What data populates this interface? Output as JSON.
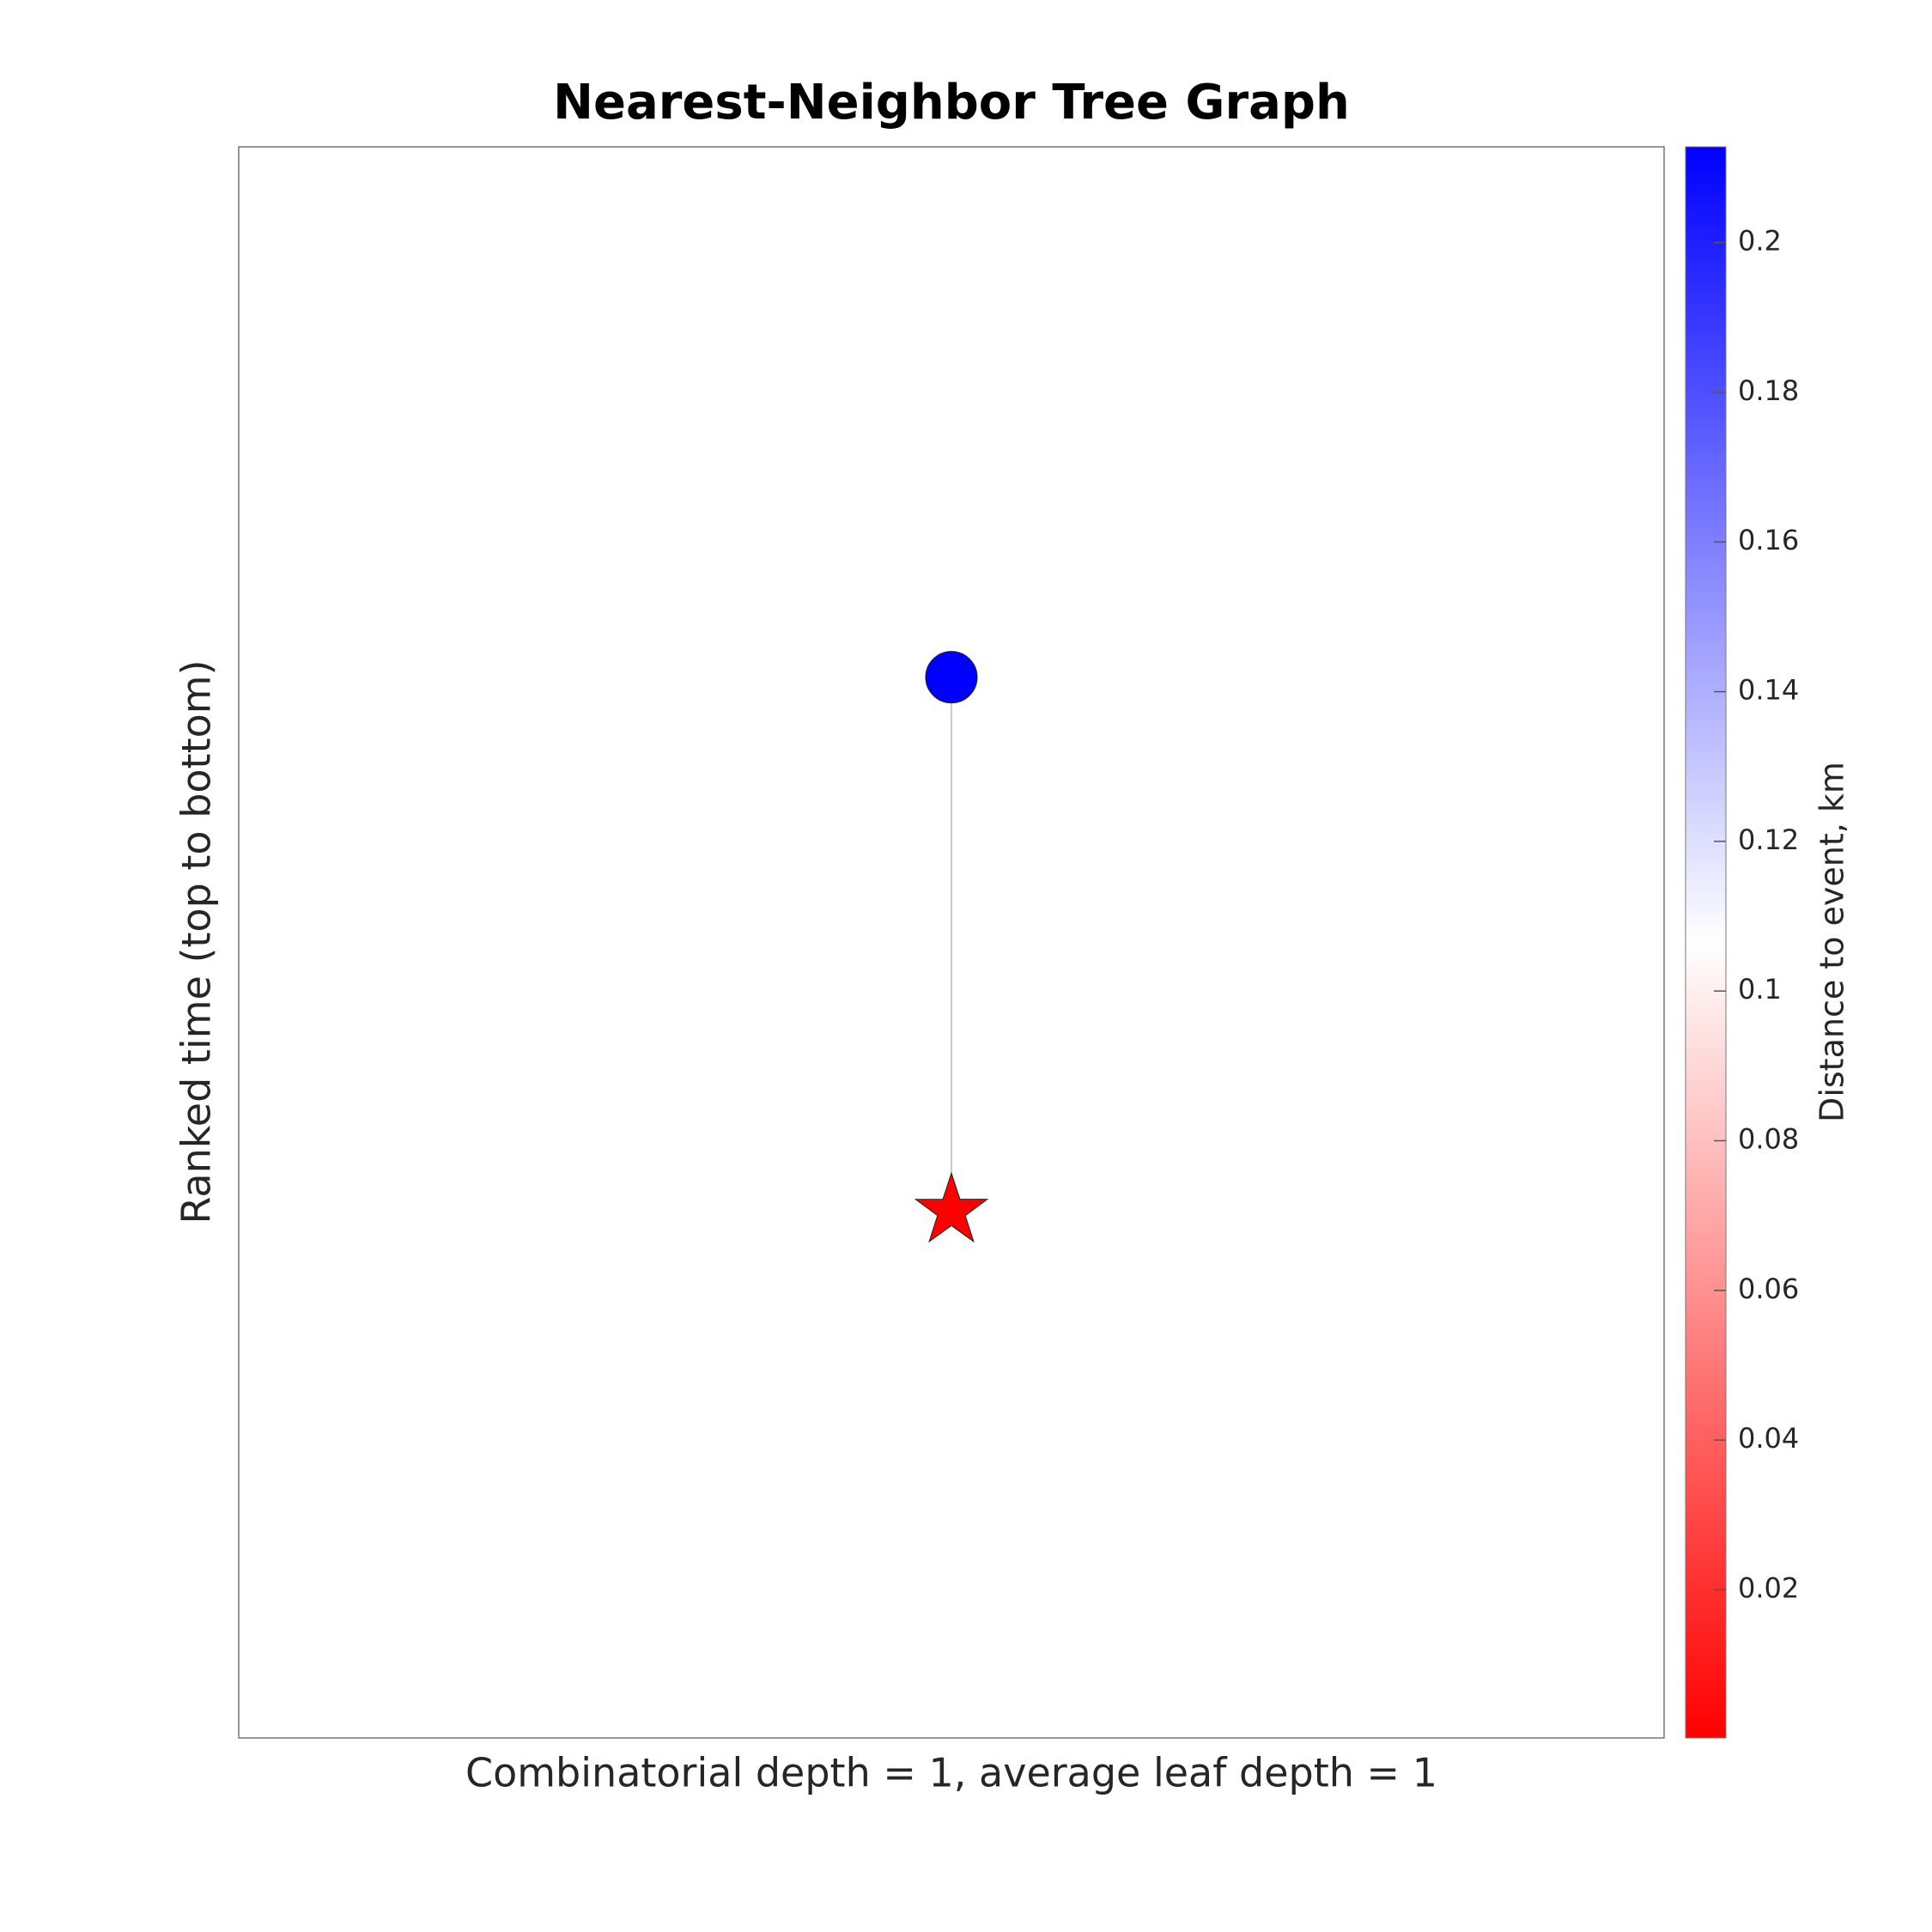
{
  "chart_data": {
    "type": "graph",
    "title": "Nearest-Neighbor Tree Graph",
    "xlabel": "Combinatorial depth = 1, average leaf depth = 1",
    "ylabel": "Ranked time (top to bottom)",
    "xlim": [
      0,
      2
    ],
    "ylim": [
      0,
      3
    ],
    "y_reversed": true,
    "nodes": [
      {
        "x": 1,
        "y": 1,
        "distance": 0.2128,
        "marker": "circle"
      },
      {
        "x": 1,
        "y": 2,
        "distance": 0.0002,
        "marker": "star"
      }
    ],
    "edges": [
      {
        "source": 0,
        "target": 1
      }
    ],
    "edge_color": "#cccccc",
    "colorbar": {
      "label": "Distance to event, km",
      "clim": [
        0.0002,
        0.2128
      ],
      "ticks": [
        0.02,
        0.04,
        0.06,
        0.08,
        0.1,
        0.12,
        0.14,
        0.16,
        0.18,
        0.2
      ],
      "colormap": [
        "#ff0000",
        "#ffffff",
        "#0000ff"
      ]
    }
  }
}
